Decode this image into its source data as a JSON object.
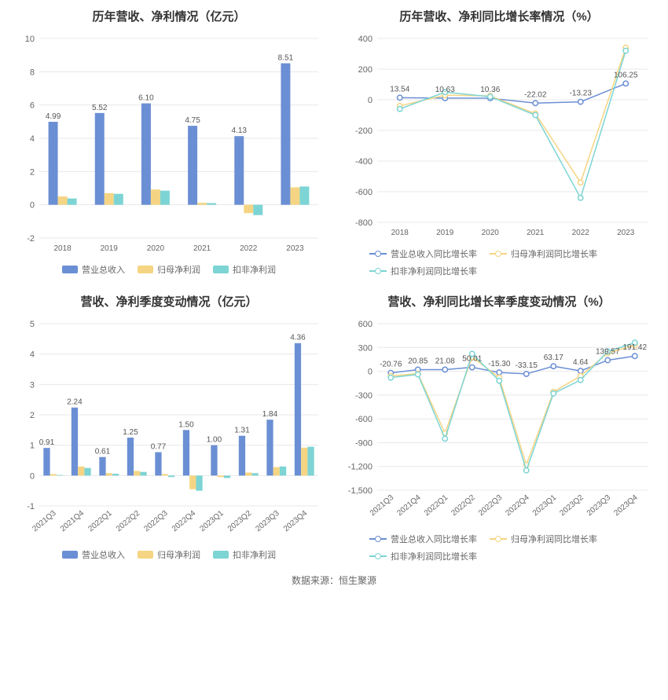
{
  "footer": "数据来源：恒生聚源",
  "colors": {
    "blue": "#6b8fd4",
    "yellow": "#f5d583",
    "teal": "#7dd4d4",
    "grid": "#e8e8e8",
    "axis_text": "#666666",
    "title": "#333333",
    "bg": "#ffffff"
  },
  "chart1": {
    "title": "历年营收、净利情况（亿元）",
    "type": "bar",
    "categories": [
      "2018",
      "2019",
      "2020",
      "2021",
      "2022",
      "2023"
    ],
    "ylim": [
      -2,
      10
    ],
    "ytick_step": 2,
    "series": [
      {
        "name": "营业总收入",
        "color": "#6b8fd4",
        "values": [
          4.99,
          5.52,
          6.1,
          4.75,
          4.13,
          8.51
        ],
        "label_offset": -4
      },
      {
        "name": "归母净利润",
        "color": "#f5d583",
        "values": [
          0.5,
          0.7,
          0.92,
          0.12,
          -0.5,
          1.05
        ]
      },
      {
        "name": "扣非净利润",
        "color": "#7dd4d4",
        "values": [
          0.38,
          0.66,
          0.85,
          0.1,
          -0.62,
          1.1
        ]
      }
    ],
    "title_fontsize": 15,
    "label_fontsize": 10,
    "legend_pos": "center"
  },
  "chart2": {
    "title": "历年营收、净利同比增长率情况（%）",
    "type": "line",
    "categories": [
      "2018",
      "2019",
      "2020",
      "2021",
      "2022",
      "2023"
    ],
    "ylim": [
      -800,
      400
    ],
    "ytick_step": 200,
    "series": [
      {
        "name": "营业总收入同比增长率",
        "color": "#6b8fd4",
        "values": [
          13.54,
          10.63,
          10.36,
          -22.02,
          -13.23,
          106.25
        ],
        "show_labels": true
      },
      {
        "name": "归母净利润同比增长率",
        "color": "#f5d583",
        "values": [
          -40,
          30,
          25,
          -90,
          -540,
          340
        ]
      },
      {
        "name": "扣非净利润同比增长率",
        "color": "#7dd4d4",
        "values": [
          -60,
          50,
          20,
          -100,
          -640,
          320
        ]
      }
    ],
    "title_fontsize": 15,
    "legend_pos": "left"
  },
  "chart3": {
    "title": "营收、净利季度变动情况（亿元）",
    "type": "bar",
    "categories": [
      "2021Q3",
      "2021Q4",
      "2022Q1",
      "2022Q2",
      "2022Q3",
      "2022Q4",
      "2023Q1",
      "2023Q2",
      "2023Q3",
      "2023Q4"
    ],
    "ylim": [
      -1,
      5
    ],
    "ytick_step": 1,
    "rotate_x": true,
    "series": [
      {
        "name": "营业总收入",
        "color": "#6b8fd4",
        "values": [
          0.91,
          2.24,
          0.61,
          1.25,
          0.77,
          1.5,
          1.0,
          1.31,
          1.84,
          4.36
        ],
        "label_offset": -4
      },
      {
        "name": "归母净利润",
        "color": "#f5d583",
        "values": [
          0.05,
          0.3,
          0.08,
          0.15,
          0.05,
          -0.45,
          -0.05,
          0.1,
          0.28,
          0.92
        ]
      },
      {
        "name": "扣非净利润",
        "color": "#7dd4d4",
        "values": [
          0.02,
          0.25,
          0.06,
          0.12,
          -0.05,
          -0.5,
          -0.08,
          0.08,
          0.3,
          0.95
        ]
      }
    ],
    "title_fontsize": 15,
    "legend_pos": "center"
  },
  "chart4": {
    "title": "营收、净利同比增长率季度变动情况（%）",
    "type": "line",
    "categories": [
      "2021Q3",
      "2021Q4",
      "2022Q1",
      "2022Q2",
      "2022Q3",
      "2022Q4",
      "2023Q1",
      "2023Q2",
      "2023Q3",
      "2023Q4"
    ],
    "ylim": [
      -1500,
      600
    ],
    "ytick_step": 300,
    "rotate_x": true,
    "series": [
      {
        "name": "营业总收入同比增长率",
        "color": "#6b8fd4",
        "values": [
          -20.76,
          20.85,
          21.08,
          50.01,
          -15.3,
          -33.15,
          63.17,
          4.64,
          139.57,
          191.42
        ],
        "show_labels": true
      },
      {
        "name": "归母净利润同比增长率",
        "color": "#f5d583",
        "values": [
          -60,
          -30,
          -780,
          180,
          -80,
          -1180,
          -260,
          -60,
          230,
          330
        ]
      },
      {
        "name": "扣非净利润同比增长率",
        "color": "#7dd4d4",
        "values": [
          -80,
          -40,
          -850,
          220,
          -120,
          -1250,
          -280,
          -110,
          250,
          360
        ]
      }
    ],
    "title_fontsize": 15,
    "legend_pos": "left"
  }
}
